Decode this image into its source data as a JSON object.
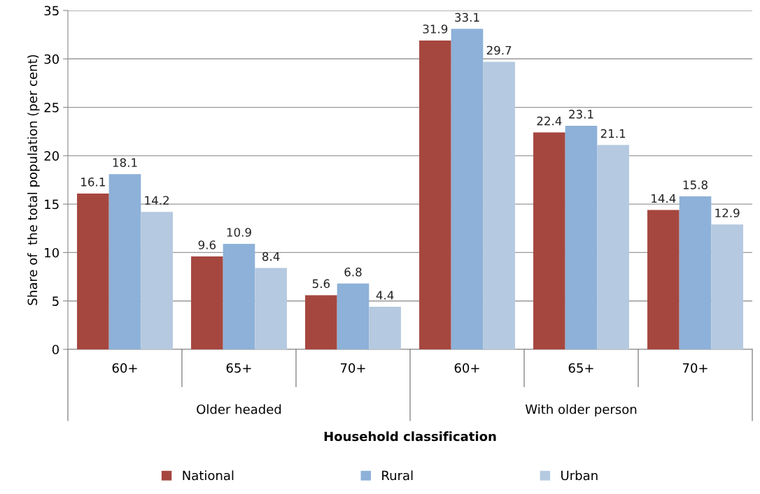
{
  "chart_data": {
    "type": "bar",
    "xlabel": "Household classification",
    "ylabel": "Share of  the total population (per cent)",
    "categories": [
      "60+",
      "65+",
      "70+",
      "60+",
      "65+",
      "70+"
    ],
    "annotations": [
      "Older headed",
      "With older person"
    ],
    "series": [
      {
        "name": "National",
        "color": "#a5473f",
        "values": [
          16.1,
          9.6,
          5.6,
          31.9,
          22.4,
          14.4
        ]
      },
      {
        "name": "Rural",
        "color": "#8db1d8",
        "values": [
          18.1,
          10.9,
          6.8,
          33.1,
          23.1,
          15.8
        ]
      },
      {
        "name": "Urban",
        "color": "#b5c9e0",
        "values": [
          14.2,
          8.4,
          4.4,
          29.7,
          21.1,
          12.9
        ]
      }
    ],
    "ylim": [
      0,
      35
    ],
    "yticks": [
      0,
      5,
      10,
      15,
      20,
      25,
      30,
      35
    ],
    "grid": "y",
    "legend": "bottom",
    "data_labels": true
  }
}
